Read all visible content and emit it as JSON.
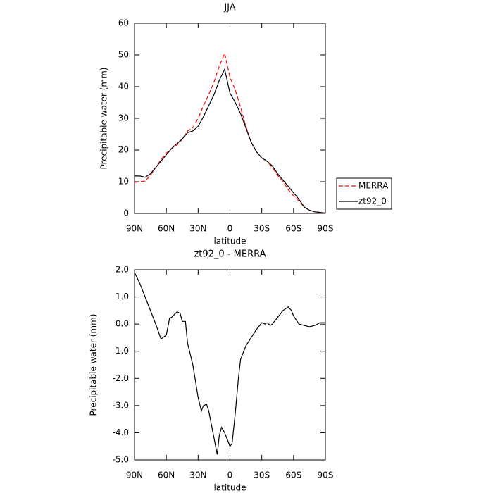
{
  "chart_data": [
    {
      "type": "line",
      "title": "JJA",
      "xlabel": "latitude",
      "ylabel": "Precipitable water (mm)",
      "x": [
        90,
        85,
        80,
        75,
        70,
        65,
        60,
        55,
        50,
        45,
        40,
        35,
        30,
        25,
        20,
        15,
        10,
        5,
        0,
        -5,
        -10,
        -15,
        -20,
        -25,
        -30,
        -35,
        -40,
        -45,
        -50,
        -55,
        -60,
        -65,
        -70,
        -75,
        -80,
        -85,
        -90
      ],
      "series": [
        {
          "name": "MERRA",
          "color": "#ff0000",
          "dashed": true,
          "values": [
            9.8,
            10,
            10.2,
            12,
            14.5,
            17,
            19,
            20.5,
            21.5,
            23.5,
            26,
            27,
            30,
            34,
            37.5,
            41.5,
            46.5,
            50.5,
            43,
            39,
            33.5,
            27.5,
            22.5,
            19.5,
            17.5,
            16.5,
            14.5,
            12,
            10,
            7.5,
            5.5,
            4,
            2,
            1,
            0.5,
            0.3,
            0.1
          ]
        },
        {
          "name": "zt92_0",
          "color": "#000000",
          "dashed": false,
          "values": [
            11.8,
            11.8,
            11.4,
            12.5,
            14.5,
            16.5,
            18.5,
            20.5,
            22,
            23.5,
            25.5,
            26,
            27.5,
            30.5,
            34,
            37.5,
            42,
            45.5,
            38,
            35,
            31.5,
            27,
            22.5,
            19.5,
            17.5,
            16.5,
            15,
            12.5,
            10.5,
            8.5,
            6.5,
            4.5,
            2,
            1,
            0.5,
            0.3,
            0.1
          ]
        }
      ],
      "xlim": [
        90,
        -90
      ],
      "xticks": [
        {
          "value": 90,
          "label": "90N"
        },
        {
          "value": 60,
          "label": "60N"
        },
        {
          "value": 30,
          "label": "30N"
        },
        0,
        {
          "value": -30,
          "label": "30S"
        },
        {
          "value": -60,
          "label": "60S"
        },
        {
          "value": -90,
          "label": "90S"
        }
      ],
      "ylim": [
        0,
        60
      ],
      "yticks": [
        0,
        10,
        20,
        30,
        40,
        50,
        60
      ],
      "legend": "right"
    },
    {
      "type": "line",
      "title": "zt92_0 - MERRA",
      "xlabel": "latitude",
      "ylabel": "Precipitable water (mm)",
      "x": [
        90,
        85,
        80,
        75,
        70,
        65,
        60,
        57,
        55,
        50,
        47,
        45,
        42,
        40,
        35,
        30,
        27,
        25,
        22,
        20,
        15,
        12,
        10,
        8,
        5,
        2,
        0,
        -2,
        -5,
        -8,
        -10,
        -15,
        -20,
        -25,
        -30,
        -33,
        -35,
        -38,
        -40,
        -45,
        -50,
        -55,
        -58,
        -60,
        -65,
        -70,
        -75,
        -80,
        -85,
        -90
      ],
      "values": [
        1.9,
        1.5,
        1.0,
        0.5,
        0.0,
        -0.55,
        -0.4,
        0.2,
        0.25,
        0.45,
        0.4,
        0.1,
        0.1,
        -0.7,
        -1.5,
        -2.7,
        -3.2,
        -3.0,
        -2.95,
        -3.2,
        -4.2,
        -4.8,
        -4.1,
        -3.8,
        -4.0,
        -4.3,
        -4.5,
        -4.4,
        -3.3,
        -2.0,
        -1.3,
        -0.8,
        -0.5,
        -0.2,
        0.05,
        0.0,
        0.05,
        -0.05,
        0.0,
        0.25,
        0.5,
        0.63,
        0.5,
        0.3,
        0.0,
        -0.05,
        -0.1,
        -0.05,
        0.05,
        0.05
      ],
      "color": "#000000",
      "xlim": [
        90,
        -90
      ],
      "xticks": [
        {
          "value": 90,
          "label": "90N"
        },
        {
          "value": 60,
          "label": "60N"
        },
        {
          "value": 30,
          "label": "30N"
        },
        0,
        {
          "value": -30,
          "label": "30S"
        },
        {
          "value": -60,
          "label": "60S"
        },
        {
          "value": -90,
          "label": "90S"
        }
      ],
      "ylim": [
        -5,
        2
      ],
      "yticks": [
        {
          "value": -5,
          "label": "-5.0"
        },
        {
          "value": -4,
          "label": "-4.0"
        },
        {
          "value": -3,
          "label": "-3.0"
        },
        {
          "value": -2,
          "label": "-2.0"
        },
        {
          "value": -1,
          "label": "-1.0"
        },
        {
          "value": 0,
          "label": "0.0"
        },
        {
          "value": 1,
          "label": "1.0"
        },
        {
          "value": 2,
          "label": "2.0"
        }
      ]
    }
  ]
}
